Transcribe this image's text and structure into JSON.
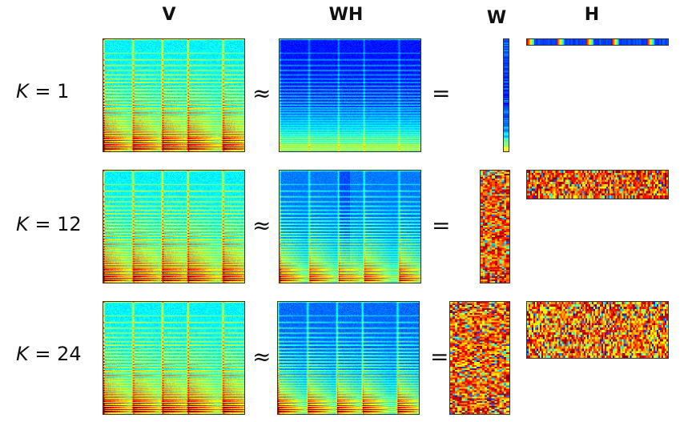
{
  "headers": {
    "v": "V",
    "wh": "WH",
    "w": "W",
    "h": "H"
  },
  "symbols": {
    "approx": "≈",
    "equals": "="
  },
  "rows": [
    {
      "k_symbol": "K",
      "eq": "=",
      "k_value": "1"
    },
    {
      "k_symbol": "K",
      "eq": "=",
      "k_value": "12"
    },
    {
      "k_symbol": "K",
      "eq": "=",
      "k_value": "24"
    }
  ],
  "colormap": "jet"
}
